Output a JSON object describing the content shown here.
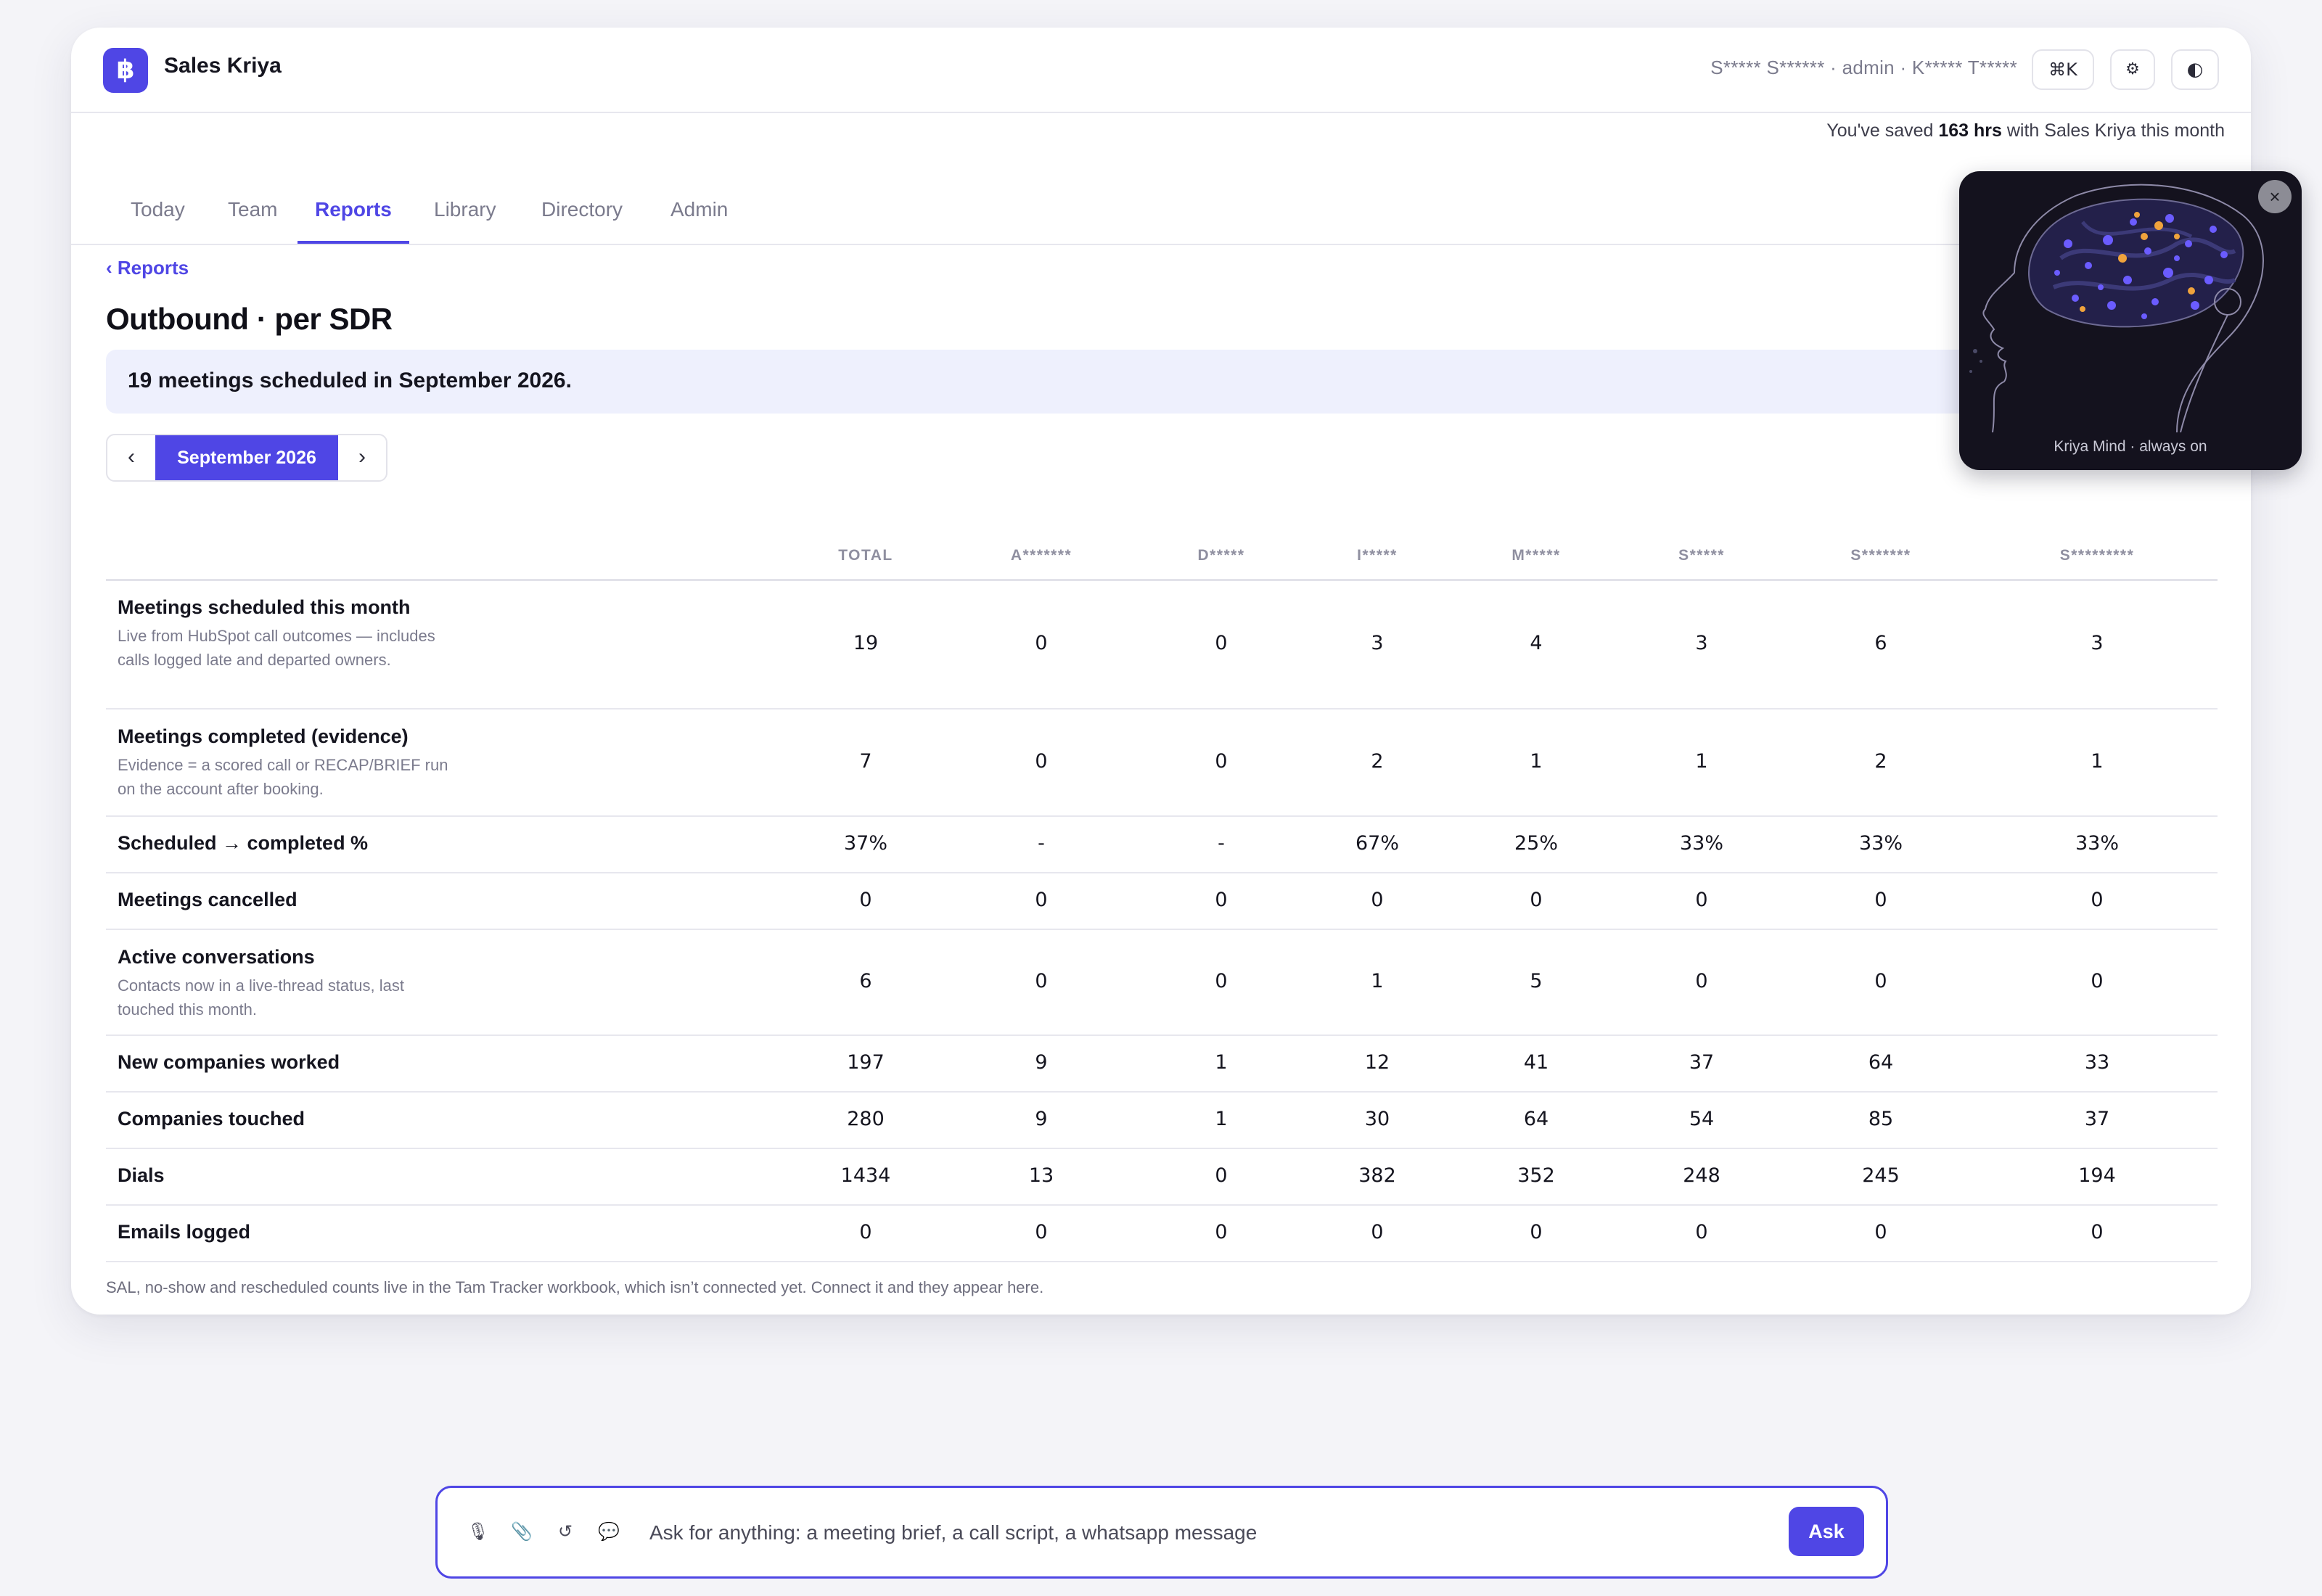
{
  "app": {
    "name": "Sales Kriya",
    "logo_glyph": "฿",
    "user_line": "S***** S****** · admin · K***** T*****",
    "toolbar": {
      "command_label": "⌘K",
      "settings_icon": "⚙",
      "theme_icon": "◐"
    },
    "saved": {
      "prefix": "You've saved ",
      "amount": "163 hrs",
      "suffix": " with Sales Kriya this month"
    }
  },
  "tabs": [
    {
      "label": "Today",
      "active": false
    },
    {
      "label": "Team",
      "active": false
    },
    {
      "label": "Reports",
      "active": true
    },
    {
      "label": "Library",
      "active": false
    },
    {
      "label": "Directory",
      "active": false
    },
    {
      "label": "Admin",
      "active": false
    }
  ],
  "page": {
    "back_label": "‹ Reports",
    "title": "Outbound · per SDR",
    "banner": "19 meetings scheduled in September 2026.",
    "month": {
      "prev": "‹",
      "label": "September 2026",
      "next": "›"
    }
  },
  "table": {
    "columns": [
      "TOTAL",
      "A*******",
      "D*****",
      "I*****",
      "M*****",
      "S*****",
      "S*******",
      "S*********"
    ],
    "rows": [
      {
        "label": "Meetings scheduled this month",
        "sub": "Live from HubSpot call outcomes — includes calls logged late and departed owners.",
        "values": [
          "19",
          "0",
          "0",
          "3",
          "4",
          "3",
          "6",
          "3"
        ]
      },
      {
        "label": "Meetings completed (evidence)",
        "sub": "Evidence = a scored call or RECAP/BRIEF run on the account after booking.",
        "values": [
          "7",
          "0",
          "0",
          "2",
          "1",
          "1",
          "2",
          "1"
        ]
      },
      {
        "label": "Scheduled → completed %",
        "sub": "",
        "values": [
          "37%",
          "-",
          "-",
          "67%",
          "25%",
          "33%",
          "33%",
          "33%"
        ]
      },
      {
        "label": "Meetings cancelled",
        "sub": "",
        "values": [
          "0",
          "0",
          "0",
          "0",
          "0",
          "0",
          "0",
          "0"
        ]
      },
      {
        "label": "Active conversations",
        "sub": "Contacts now in a live-thread status, last touched this month.",
        "values": [
          "6",
          "0",
          "0",
          "1",
          "5",
          "0",
          "0",
          "0"
        ]
      },
      {
        "label": "New companies worked",
        "sub": "",
        "values": [
          "197",
          "9",
          "1",
          "12",
          "41",
          "37",
          "64",
          "33"
        ]
      },
      {
        "label": "Companies touched",
        "sub": "",
        "values": [
          "280",
          "9",
          "1",
          "30",
          "64",
          "54",
          "85",
          "37"
        ]
      },
      {
        "label": "Dials",
        "sub": "",
        "values": [
          "1434",
          "13",
          "0",
          "382",
          "352",
          "248",
          "245",
          "194"
        ]
      },
      {
        "label": "Emails logged",
        "sub": "",
        "values": [
          "0",
          "0",
          "0",
          "0",
          "0",
          "0",
          "0",
          "0"
        ]
      }
    ],
    "footnote": "SAL, no-show and rescheduled counts live in the Tam Tracker workbook, which isn’t connected yet. Connect it and they appear here."
  },
  "mind_widget": {
    "close_icon": "×",
    "caption": "Kriya Mind · always on"
  },
  "ask_bar": {
    "icons": [
      {
        "name": "microphone-icon",
        "glyph": "🎙"
      },
      {
        "name": "paperclip-icon",
        "glyph": "📎"
      },
      {
        "name": "refresh-icon",
        "glyph": "↺"
      },
      {
        "name": "chat-bubble-icon",
        "glyph": "💬"
      }
    ],
    "placeholder": "Ask for anything: a meeting brief, a call script, a whatsapp message",
    "button_label": "Ask"
  },
  "colors": {
    "accent": "#4f46e5",
    "banner_bg": "#eef0fd",
    "page_bg": "#f4f4f8",
    "widget_bg": "#14121e"
  }
}
